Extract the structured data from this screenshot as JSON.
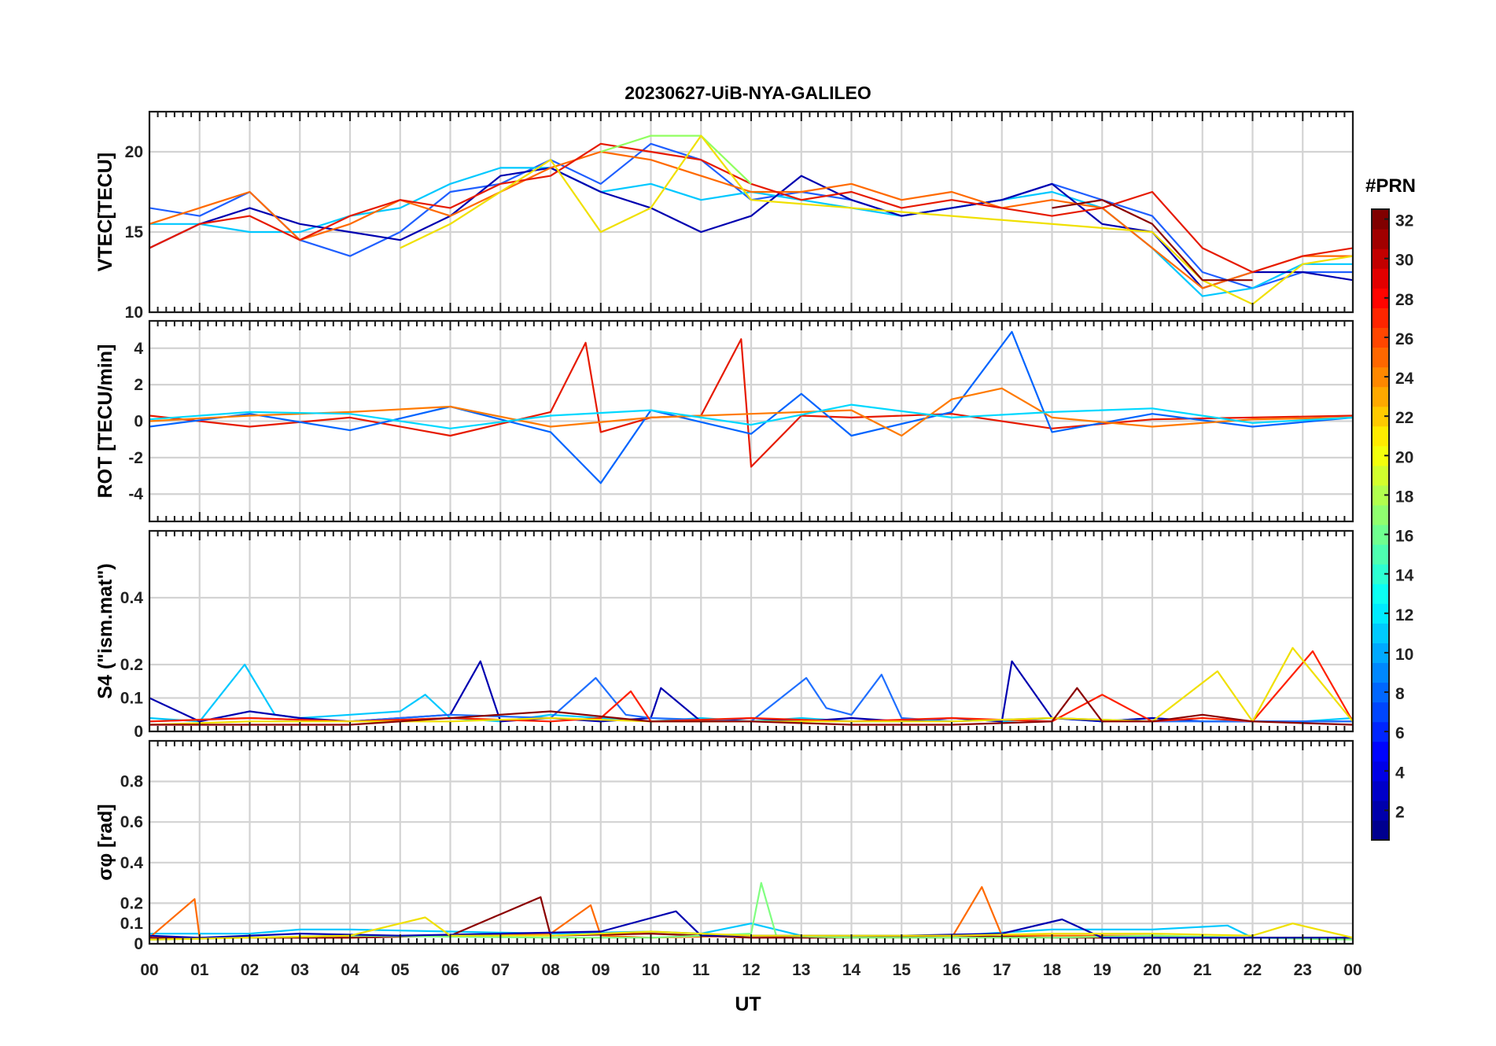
{
  "figure": {
    "title": "20230627-UiB-NYA-GALILEO",
    "xlabel": "UT"
  },
  "colorbar": {
    "label": "#PRN",
    "range": [
      1,
      32
    ],
    "tick_values": [
      2,
      4,
      6,
      8,
      10,
      12,
      14,
      16,
      18,
      20,
      22,
      24,
      26,
      28,
      30,
      32
    ],
    "colormap": "jet",
    "colors": [
      "#00008f",
      "#0000ff",
      "#0080ff",
      "#00ffff",
      "#80ff80",
      "#ffff00",
      "#ff8000",
      "#ff0000",
      "#800000"
    ]
  },
  "chart_data": [
    {
      "type": "line",
      "panel": "vtec",
      "ylabel": "VTEC[TECU]",
      "ylim": [
        10,
        22.5
      ],
      "yticks": [
        10,
        15,
        20
      ],
      "xlim": [
        0,
        24
      ],
      "xticks": [
        "00",
        "01",
        "02",
        "03",
        "04",
        "05",
        "06",
        "07",
        "08",
        "09",
        "10",
        "11",
        "12",
        "13",
        "14",
        "15",
        "16",
        "17",
        "18",
        "19",
        "20",
        "21",
        "22",
        "23",
        "00"
      ],
      "grid": true,
      "series": [
        {
          "color": "#1f5fff",
          "x": [
            0,
            1,
            2,
            3,
            4,
            5,
            6,
            7,
            8,
            9,
            10,
            11,
            12,
            13,
            14,
            15,
            16,
            17,
            18,
            19,
            20,
            21,
            22,
            23,
            24
          ],
          "values": [
            16.5,
            16.0,
            17.5,
            14.5,
            13.5,
            15.0,
            17.5,
            18.0,
            19.5,
            18.0,
            20.5,
            19.5,
            17.0,
            17.5,
            17.0,
            16.0,
            16.5,
            17.0,
            18.0,
            17.0,
            16.0,
            12.5,
            11.5,
            12.5,
            12.5
          ]
        },
        {
          "color": "#00c8ff",
          "x": [
            0,
            1,
            2,
            3,
            4,
            5,
            6,
            7,
            8,
            9,
            10,
            11,
            12,
            13,
            14,
            15,
            16,
            17,
            18,
            19,
            20,
            21,
            22,
            23,
            24
          ],
          "values": [
            15.5,
            15.5,
            15.0,
            15.0,
            16.0,
            16.5,
            18.0,
            19.0,
            19.0,
            17.5,
            18.0,
            17.0,
            17.5,
            17.0,
            16.5,
            16.0,
            16.5,
            17.0,
            17.5,
            16.5,
            14.0,
            11.0,
            11.5,
            13.0,
            13.0
          ]
        },
        {
          "color": "#0000b0",
          "x": [
            0,
            1,
            2,
            3,
            4,
            5,
            6,
            7,
            8,
            9,
            10,
            11,
            12,
            13,
            14,
            15,
            16,
            17,
            18,
            19,
            20,
            21,
            22,
            23,
            24
          ],
          "values": [
            14.0,
            15.5,
            16.5,
            15.5,
            15.0,
            14.5,
            16.0,
            18.5,
            19.0,
            17.5,
            16.5,
            15.0,
            16.0,
            18.5,
            17.0,
            16.0,
            16.5,
            17.0,
            18.0,
            15.5,
            15.0,
            11.5,
            12.5,
            12.5,
            12.0
          ]
        },
        {
          "color": "#ff6a00",
          "x": [
            0,
            1,
            2,
            3,
            4,
            5,
            6,
            7,
            8,
            9,
            10,
            11,
            12,
            13,
            14,
            15,
            16,
            17,
            18,
            19,
            20,
            21,
            22,
            23,
            24
          ],
          "values": [
            15.5,
            16.5,
            17.5,
            14.5,
            15.5,
            17.0,
            16.0,
            17.5,
            19.0,
            20.0,
            19.5,
            18.5,
            17.5,
            17.5,
            18.0,
            17.0,
            17.5,
            16.5,
            17.0,
            16.5,
            14.0,
            11.5,
            12.5,
            13.5,
            13.5
          ]
        },
        {
          "color": "#e61a00",
          "x": [
            0,
            1,
            2,
            3,
            4,
            5,
            6,
            7,
            8,
            9,
            10,
            11,
            12,
            13,
            14,
            15,
            16,
            17,
            18,
            19,
            20,
            21,
            22,
            23,
            24
          ],
          "values": [
            14.0,
            15.5,
            16.0,
            14.5,
            16.0,
            17.0,
            16.5,
            18.0,
            18.5,
            20.5,
            20.0,
            19.5,
            18.0,
            17.0,
            17.5,
            16.5,
            17.0,
            16.5,
            16.0,
            16.5,
            17.5,
            14.0,
            12.5,
            13.5,
            14.0
          ]
        },
        {
          "color": "#90ff60",
          "x": [
            9,
            10,
            11,
            12
          ],
          "values": [
            20.0,
            21.0,
            21.0,
            18.0
          ]
        },
        {
          "color": "#f0e000",
          "x": [
            5,
            6,
            8,
            9,
            10,
            11,
            12,
            20,
            21,
            22,
            23,
            24
          ],
          "values": [
            14.0,
            15.5,
            19.5,
            15.0,
            16.5,
            21.0,
            17.0,
            15.0,
            12.0,
            10.5,
            13.0,
            13.5
          ]
        },
        {
          "color": "#8b0000",
          "x": [
            18,
            19,
            20,
            21,
            22
          ],
          "values": [
            16.5,
            17.0,
            15.5,
            12.0,
            12.0
          ]
        }
      ]
    },
    {
      "type": "line",
      "panel": "rot",
      "ylabel": "ROT [TECU/min]",
      "ylim": [
        -5.5,
        5.5
      ],
      "yticks": [
        -4,
        -2,
        0,
        2,
        4
      ],
      "xlim": [
        0,
        24
      ],
      "grid": true,
      "series": [
        {
          "color": "#e61a00",
          "x": [
            0,
            2,
            4,
            6,
            8,
            8.7,
            9,
            10,
            11,
            11.8,
            12,
            13,
            14,
            16,
            18,
            20,
            22,
            24
          ],
          "values": [
            0.3,
            -0.3,
            0.2,
            -0.8,
            0.5,
            4.3,
            -0.6,
            0.2,
            0.3,
            4.5,
            -2.5,
            0.3,
            0.2,
            0.4,
            -0.4,
            0.1,
            0.2,
            0.3
          ]
        },
        {
          "color": "#0064ff",
          "x": [
            0,
            2,
            4,
            6,
            8,
            9,
            10,
            12,
            13,
            14,
            16,
            17.2,
            18,
            20,
            22,
            24
          ],
          "values": [
            -0.3,
            0.4,
            -0.5,
            0.8,
            -0.6,
            -3.4,
            0.6,
            -0.7,
            1.5,
            -0.8,
            0.5,
            4.9,
            -0.6,
            0.4,
            -0.3,
            0.2
          ]
        },
        {
          "color": "#ff7a00",
          "x": [
            0,
            2,
            4,
            6,
            8,
            10,
            12,
            14,
            15,
            16,
            17,
            18,
            20,
            22,
            24
          ],
          "values": [
            0.0,
            0.3,
            0.5,
            0.8,
            -0.3,
            0.2,
            0.4,
            0.6,
            -0.8,
            1.2,
            1.8,
            0.2,
            -0.3,
            0.1,
            0.2
          ]
        },
        {
          "color": "#00d8ff",
          "x": [
            0,
            2,
            4,
            6,
            8,
            10,
            12,
            14,
            16,
            18,
            20,
            22,
            24
          ],
          "values": [
            0.1,
            0.5,
            0.4,
            -0.4,
            0.3,
            0.6,
            -0.2,
            0.9,
            0.2,
            0.5,
            0.7,
            -0.1,
            0.2
          ]
        }
      ]
    },
    {
      "type": "line",
      "panel": "s4",
      "ylabel": "S4 (\"ism.mat\")",
      "ylim": [
        0,
        0.6
      ],
      "yticks": [
        0,
        0.1,
        0.2,
        0.4
      ],
      "xlim": [
        0,
        24
      ],
      "grid": true,
      "series": [
        {
          "color": "#00c8ff",
          "x": [
            0,
            1,
            1.9,
            2.5,
            3,
            4,
            5,
            5.5,
            6,
            7,
            8,
            9,
            10,
            11,
            12,
            13,
            14,
            15,
            16,
            17,
            18,
            19,
            20,
            21,
            22,
            23,
            24
          ],
          "values": [
            0.04,
            0.03,
            0.2,
            0.05,
            0.04,
            0.05,
            0.06,
            0.11,
            0.04,
            0.03,
            0.05,
            0.04,
            0.03,
            0.04,
            0.03,
            0.04,
            0.03,
            0.03,
            0.04,
            0.03,
            0.04,
            0.03,
            0.04,
            0.03,
            0.03,
            0.03,
            0.04
          ]
        },
        {
          "color": "#0000b0",
          "x": [
            0,
            1,
            2,
            3,
            4,
            5,
            6,
            6.6,
            7,
            8,
            9,
            10,
            10.2,
            11,
            12,
            13,
            14,
            15,
            16,
            17,
            17.2,
            18,
            19,
            20,
            21,
            22,
            23,
            24
          ],
          "values": [
            0.1,
            0.03,
            0.06,
            0.04,
            0.03,
            0.04,
            0.05,
            0.21,
            0.03,
            0.04,
            0.03,
            0.04,
            0.13,
            0.03,
            0.04,
            0.03,
            0.04,
            0.03,
            0.04,
            0.03,
            0.21,
            0.04,
            0.03,
            0.04,
            0.03,
            0.03,
            0.03,
            0.03
          ]
        },
        {
          "color": "#1f6fff",
          "x": [
            0,
            2,
            4,
            6,
            8,
            8.9,
            9.5,
            10,
            12,
            13.1,
            13.5,
            14,
            14.6,
            15,
            16,
            18,
            20,
            22,
            24
          ],
          "values": [
            0.03,
            0.04,
            0.03,
            0.05,
            0.04,
            0.16,
            0.05,
            0.04,
            0.03,
            0.16,
            0.07,
            0.05,
            0.17,
            0.04,
            0.03,
            0.04,
            0.03,
            0.03,
            0.03
          ]
        },
        {
          "color": "#ff2000",
          "x": [
            0,
            2,
            4,
            6,
            8,
            9,
            9.6,
            10,
            12,
            14,
            16,
            18,
            19,
            20,
            21,
            22,
            23.2,
            24
          ],
          "values": [
            0.03,
            0.04,
            0.03,
            0.04,
            0.03,
            0.04,
            0.12,
            0.03,
            0.04,
            0.03,
            0.04,
            0.03,
            0.11,
            0.03,
            0.04,
            0.03,
            0.24,
            0.03
          ]
        },
        {
          "color": "#f0e000",
          "x": [
            0,
            2,
            4,
            6,
            8,
            10,
            12,
            14,
            16,
            18,
            20,
            21.3,
            22,
            22.8,
            24
          ],
          "values": [
            0.02,
            0.03,
            0.03,
            0.03,
            0.04,
            0.03,
            0.03,
            0.03,
            0.03,
            0.04,
            0.03,
            0.18,
            0.03,
            0.25,
            0.03
          ]
        },
        {
          "color": "#8b0000",
          "x": [
            0,
            4,
            8,
            10,
            12,
            14,
            16,
            18,
            18.5,
            19,
            20,
            21,
            22,
            24
          ],
          "values": [
            0.02,
            0.02,
            0.06,
            0.03,
            0.03,
            0.02,
            0.02,
            0.03,
            0.13,
            0.03,
            0.03,
            0.05,
            0.03,
            0.02
          ]
        }
      ]
    },
    {
      "type": "line",
      "panel": "sigma_phi",
      "ylabel": "σφ [rad]",
      "ylim": [
        0,
        1
      ],
      "yticks": [
        0,
        0.1,
        0.2,
        0.4,
        0.6,
        0.8
      ],
      "xlim": [
        0,
        24
      ],
      "grid": true,
      "series": [
        {
          "color": "#00c8ff",
          "x": [
            0,
            2,
            3,
            4,
            6,
            8,
            10,
            11,
            12,
            13,
            14,
            16,
            18,
            20,
            21.5,
            22,
            24
          ],
          "values": [
            0.05,
            0.05,
            0.07,
            0.07,
            0.06,
            0.05,
            0.06,
            0.05,
            0.1,
            0.04,
            0.04,
            0.04,
            0.07,
            0.07,
            0.09,
            0.03,
            0.03
          ]
        },
        {
          "color": "#ff6a00",
          "x": [
            0,
            0.9,
            1,
            4,
            6,
            8,
            8.8,
            9,
            10,
            12,
            14,
            16,
            16.6,
            17,
            18,
            20,
            22,
            24
          ],
          "values": [
            0.03,
            0.22,
            0.03,
            0.03,
            0.04,
            0.05,
            0.19,
            0.04,
            0.03,
            0.04,
            0.03,
            0.03,
            0.28,
            0.04,
            0.04,
            0.04,
            0.03,
            0.03
          ]
        },
        {
          "color": "#8b0000",
          "x": [
            0,
            2,
            4,
            6,
            7.8,
            8,
            10,
            12,
            14,
            16,
            18,
            20,
            22,
            24
          ],
          "values": [
            0.03,
            0.03,
            0.03,
            0.04,
            0.23,
            0.04,
            0.05,
            0.03,
            0.03,
            0.04,
            0.03,
            0.03,
            0.03,
            0.03
          ]
        },
        {
          "color": "#80ff80",
          "x": [
            0,
            4,
            8,
            10,
            12,
            12.2,
            12.5,
            14,
            18,
            20,
            22,
            24
          ],
          "values": [
            0.02,
            0.04,
            0.03,
            0.03,
            0.05,
            0.3,
            0.04,
            0.03,
            0.03,
            0.04,
            0.03,
            0.02
          ]
        },
        {
          "color": "#0000b0",
          "x": [
            0,
            1,
            3,
            5,
            7,
            9,
            10.5,
            11,
            13,
            15,
            17,
            18.2,
            19,
            21,
            23,
            24
          ],
          "values": [
            0.04,
            0.03,
            0.05,
            0.04,
            0.05,
            0.06,
            0.16,
            0.04,
            0.04,
            0.04,
            0.05,
            0.12,
            0.03,
            0.03,
            0.03,
            0.03
          ]
        },
        {
          "color": "#f0e000",
          "x": [
            0,
            4,
            5.5,
            6,
            8,
            10,
            12,
            14,
            16,
            18,
            20,
            22,
            22.8,
            24
          ],
          "values": [
            0.02,
            0.04,
            0.13,
            0.04,
            0.04,
            0.06,
            0.04,
            0.04,
            0.04,
            0.05,
            0.05,
            0.04,
            0.1,
            0.03
          ]
        }
      ]
    }
  ]
}
